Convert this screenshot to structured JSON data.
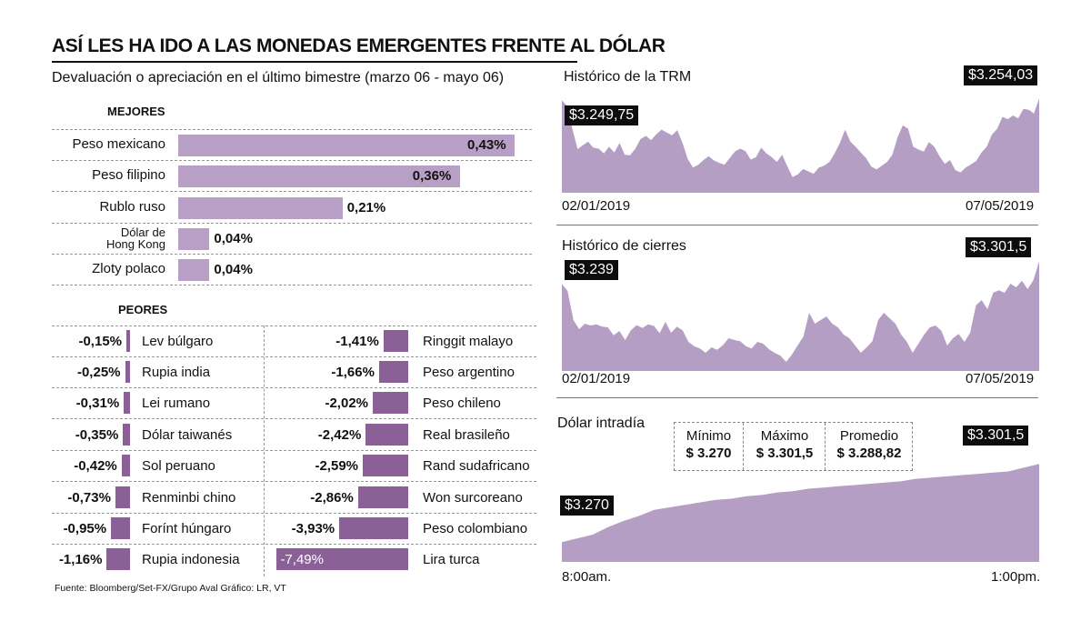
{
  "title": "ASÍ LES HA IDO A LAS MONEDAS EMERGENTES FRENTE AL DÓLAR",
  "subtitle": "Devaluación o apreciación en el último bimestre (marzo 06 - mayo 06)",
  "colors": {
    "bar_light": "#b89fc6",
    "bar_dark": "#8a6096",
    "area": "#b59ec4",
    "callout": "#0d0d0d"
  },
  "mejores": {
    "label": "MEJORES",
    "items": [
      {
        "name": "Peso mexicano",
        "value": 0.43,
        "display": "0,43%"
      },
      {
        "name": "Peso filipino",
        "value": 0.36,
        "display": "0,36%"
      },
      {
        "name": "Rublo ruso",
        "value": 0.21,
        "display": "0,21%"
      },
      {
        "name": "Dólar de Hong Kong",
        "line1": "Dólar de",
        "line2": "Hong Kong",
        "value": 0.04,
        "display": "0,04%"
      },
      {
        "name": "Zloty polaco",
        "value": 0.04,
        "display": "0,04%"
      }
    ]
  },
  "peores": {
    "label": "PEORES",
    "left": [
      {
        "name": "Lev búlgaro",
        "value": -0.15,
        "display": "-0,15%"
      },
      {
        "name": "Rupia india",
        "value": -0.25,
        "display": "-0,25%"
      },
      {
        "name": "Lei rumano",
        "value": -0.31,
        "display": "-0,31%"
      },
      {
        "name": "Dólar taiwanés",
        "value": -0.35,
        "display": "-0,35%"
      },
      {
        "name": "Sol peruano",
        "value": -0.42,
        "display": "-0,42%"
      },
      {
        "name": "Renminbi chino",
        "value": -0.73,
        "display": "-0,73%"
      },
      {
        "name": "Forínt húngaro",
        "value": -0.95,
        "display": "-0,95%"
      },
      {
        "name": "Rupia indonesia",
        "value": -1.16,
        "display": "-1,16%"
      }
    ],
    "right": [
      {
        "name": "Ringgit malayo",
        "value": -1.41,
        "display": "-1,41%"
      },
      {
        "name": "Peso argentino",
        "value": -1.66,
        "display": "-1,66%"
      },
      {
        "name": "Peso chileno",
        "value": -2.02,
        "display": "-2,02%"
      },
      {
        "name": "Real brasileño",
        "value": -2.42,
        "display": "-2,42%"
      },
      {
        "name": "Rand sudafricano",
        "value": -2.59,
        "display": "-2,59%"
      },
      {
        "name": "Won surcoreano",
        "value": -2.86,
        "display": "-2,86%"
      },
      {
        "name": "Peso colombiano",
        "value": -3.93,
        "display": "-3,93%"
      },
      {
        "name": "Lira turca",
        "value": -7.49,
        "display": "-7,49%"
      }
    ]
  },
  "footer": "Fuente: Bloomberg/Set-FX/Grupo Aval   Gráfico: LR, VT",
  "chart_data": [
    {
      "type": "area",
      "title": "Histórico de la TRM",
      "x_start": "02/01/2019",
      "x_end": "07/05/2019",
      "start_label": "$3.249,75",
      "end_label": "$3.254,03",
      "ylim": [
        3055,
        3262
      ],
      "values": [
        3249.75,
        3238,
        3190,
        3147,
        3155,
        3163,
        3150,
        3148,
        3138,
        3152,
        3140,
        3160,
        3135,
        3134,
        3148,
        3168,
        3175,
        3166,
        3178,
        3188,
        3182,
        3176,
        3187,
        3160,
        3126,
        3108,
        3114,
        3124,
        3132,
        3123,
        3118,
        3114,
        3128,
        3142,
        3148,
        3143,
        3125,
        3130,
        3150,
        3138,
        3130,
        3120,
        3135,
        3110,
        3088,
        3094,
        3105,
        3100,
        3095,
        3108,
        3112,
        3120,
        3138,
        3160,
        3188,
        3163,
        3152,
        3140,
        3128,
        3110,
        3104,
        3112,
        3120,
        3135,
        3172,
        3197,
        3190,
        3152,
        3146,
        3142,
        3162,
        3152,
        3132,
        3116,
        3124,
        3103,
        3098,
        3108,
        3115,
        3122,
        3140,
        3152,
        3178,
        3190,
        3215,
        3210,
        3218,
        3212,
        3232,
        3230,
        3222,
        3254.03
      ]
    },
    {
      "type": "area",
      "title": "Histórico de cierres",
      "x_start": "02/01/2019",
      "x_end": "07/05/2019",
      "start_label": "$3.239",
      "end_label": "$3.301,5",
      "ylim": [
        3000,
        3310
      ],
      "values": [
        3239,
        3220,
        3140,
        3115,
        3130,
        3125,
        3128,
        3122,
        3120,
        3098,
        3110,
        3085,
        3112,
        3126,
        3118,
        3128,
        3124,
        3104,
        3135,
        3105,
        3122,
        3112,
        3080,
        3068,
        3062,
        3050,
        3065,
        3058,
        3071,
        3090,
        3085,
        3082,
        3068,
        3062,
        3080,
        3075,
        3060,
        3050,
        3042,
        3025,
        3045,
        3070,
        3095,
        3160,
        3130,
        3140,
        3150,
        3130,
        3120,
        3100,
        3090,
        3070,
        3050,
        3065,
        3082,
        3140,
        3160,
        3145,
        3130,
        3100,
        3080,
        3050,
        3075,
        3100,
        3120,
        3125,
        3110,
        3070,
        3090,
        3102,
        3080,
        3105,
        3180,
        3195,
        3170,
        3215,
        3222,
        3215,
        3240,
        3230,
        3248,
        3225,
        3250,
        3301.5
      ]
    },
    {
      "type": "area",
      "title": "Dólar intradía",
      "x_start": "8:00am.",
      "x_end": "1:00pm.",
      "start_label": "$3.270",
      "end_label": "$3.301,5",
      "ylim": [
        3262,
        3306
      ],
      "values": [
        3270,
        3271.5,
        3273,
        3276,
        3278.5,
        3280.5,
        3283,
        3284,
        3285,
        3286,
        3287,
        3287.5,
        3288.5,
        3289,
        3290,
        3290.5,
        3291.5,
        3292,
        3292.5,
        3293,
        3293.5,
        3294,
        3294.5,
        3295.5,
        3296,
        3296.5,
        3297,
        3297.5,
        3298,
        3298.5,
        3300,
        3301.5
      ],
      "stats": {
        "min_label": "Mínimo",
        "min_value": "$ 3.270",
        "max_label": "Máximo",
        "max_value": "$ 3.301,5",
        "avg_label": "Promedio",
        "avg_value": "$ 3.288,82"
      }
    }
  ]
}
